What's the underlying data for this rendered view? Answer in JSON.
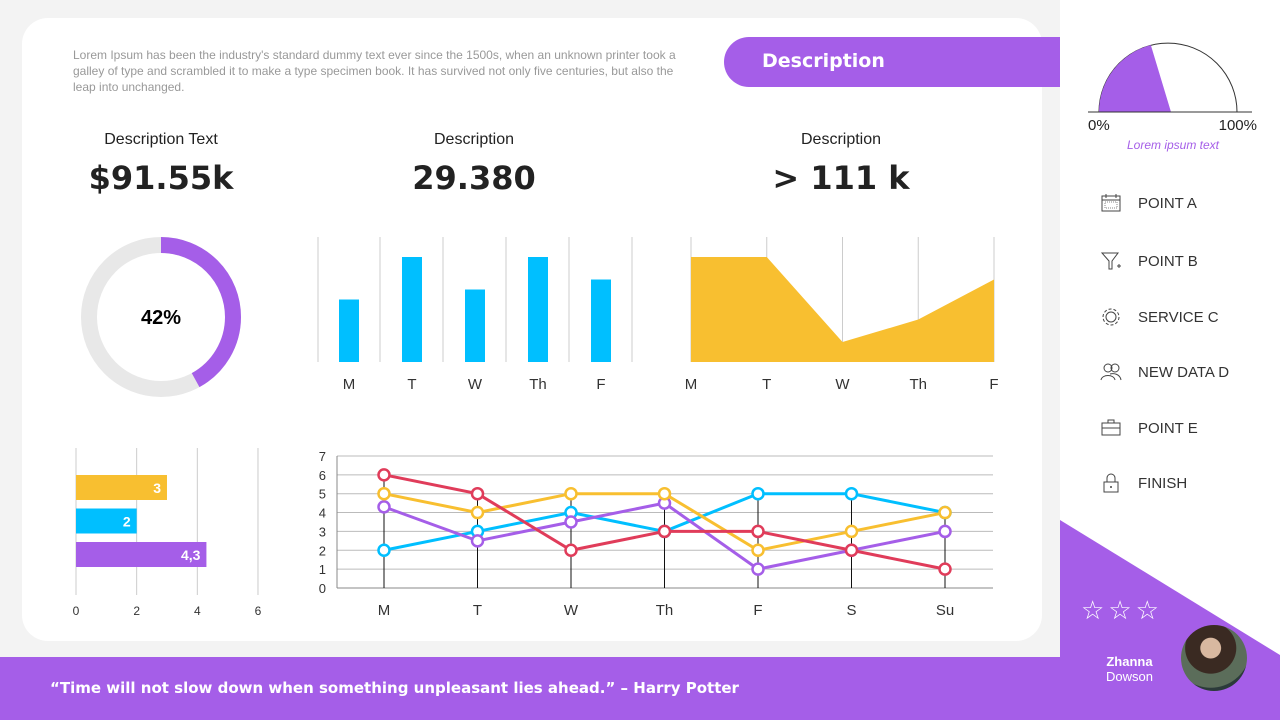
{
  "intro": "Lorem Ipsum has been the industry's standard dummy text ever since the 1500s, when an unknown printer took a galley of type and scrambled it to make a type specimen book. It has survived not only five centuries, but also the leap into unchanged.",
  "header_pill": "Description",
  "kpis": [
    {
      "label": "Description Text",
      "value": "$91.55k"
    },
    {
      "label": "Description",
      "value": "29.380"
    },
    {
      "label": "Description",
      "value": "> 111 k"
    }
  ],
  "colors": {
    "purple": "#a55ee8",
    "blue": "#00bfff",
    "yellow": "#f8bf30",
    "red": "#e03c5a",
    "grey": "#e8e8e8"
  },
  "chart_data": [
    {
      "type": "pie",
      "subtype": "donut",
      "value": 42,
      "label": "42%"
    },
    {
      "type": "bar",
      "categories": [
        "M",
        "T",
        "W",
        "Th",
        "F"
      ],
      "values": [
        2.5,
        4.2,
        2.9,
        4.2,
        3.3
      ],
      "ylim": [
        0,
        5
      ],
      "color": "#00bfff"
    },
    {
      "type": "area",
      "categories": [
        "M",
        "T",
        "W",
        "Th",
        "F"
      ],
      "values": [
        4.2,
        4.2,
        0.8,
        1.7,
        3.3
      ],
      "ylim": [
        0,
        5
      ],
      "color": "#f8bf30"
    },
    {
      "type": "bar",
      "orientation": "horizontal",
      "values": [
        3,
        2,
        4.3
      ],
      "labels": [
        "3",
        "2",
        "4,3"
      ],
      "colors": [
        "#f8bf30",
        "#00bfff",
        "#a55ee8"
      ],
      "xlim": [
        0,
        6
      ],
      "xticks": [
        "0",
        "2",
        "4",
        "6"
      ]
    },
    {
      "type": "line",
      "categories": [
        "M",
        "T",
        "W",
        "Th",
        "F",
        "S",
        "Su"
      ],
      "ylim": [
        0,
        7
      ],
      "yticks": [
        "0",
        "1",
        "2",
        "3",
        "4",
        "5",
        "6",
        "7"
      ],
      "grid": true,
      "series": [
        {
          "color": "#00bfff",
          "values": [
            2,
            3,
            4,
            3,
            5,
            5,
            4
          ]
        },
        {
          "color": "#a55ee8",
          "values": [
            4.3,
            2.5,
            3.5,
            4.5,
            1,
            2,
            3
          ]
        },
        {
          "color": "#f8bf30",
          "values": [
            5,
            4,
            5,
            5,
            2,
            3,
            4
          ]
        },
        {
          "color": "#e03c5a",
          "values": [
            6,
            5,
            2,
            3,
            3,
            2,
            1
          ]
        }
      ]
    },
    {
      "type": "gauge",
      "value": 42,
      "min_label": "0%",
      "max_label": "100%",
      "caption": "Lorem ipsum text"
    }
  ],
  "menu": [
    {
      "icon": "calendar-icon",
      "label": "POINT A"
    },
    {
      "icon": "funnel-icon",
      "label": "POINT B"
    },
    {
      "icon": "gear-icon",
      "label": "SERVICE C"
    },
    {
      "icon": "users-icon",
      "label": "NEW DATA D"
    },
    {
      "icon": "briefcase-icon",
      "label": "POINT E"
    },
    {
      "icon": "lock-icon",
      "label": "FINISH"
    }
  ],
  "rating": {
    "stars": 3,
    "filled": 0
  },
  "profile": {
    "first": "Zhanna",
    "last": "Dowson"
  },
  "quote": "“Time will not slow down when something unpleasant lies ahead.” – Harry Potter"
}
